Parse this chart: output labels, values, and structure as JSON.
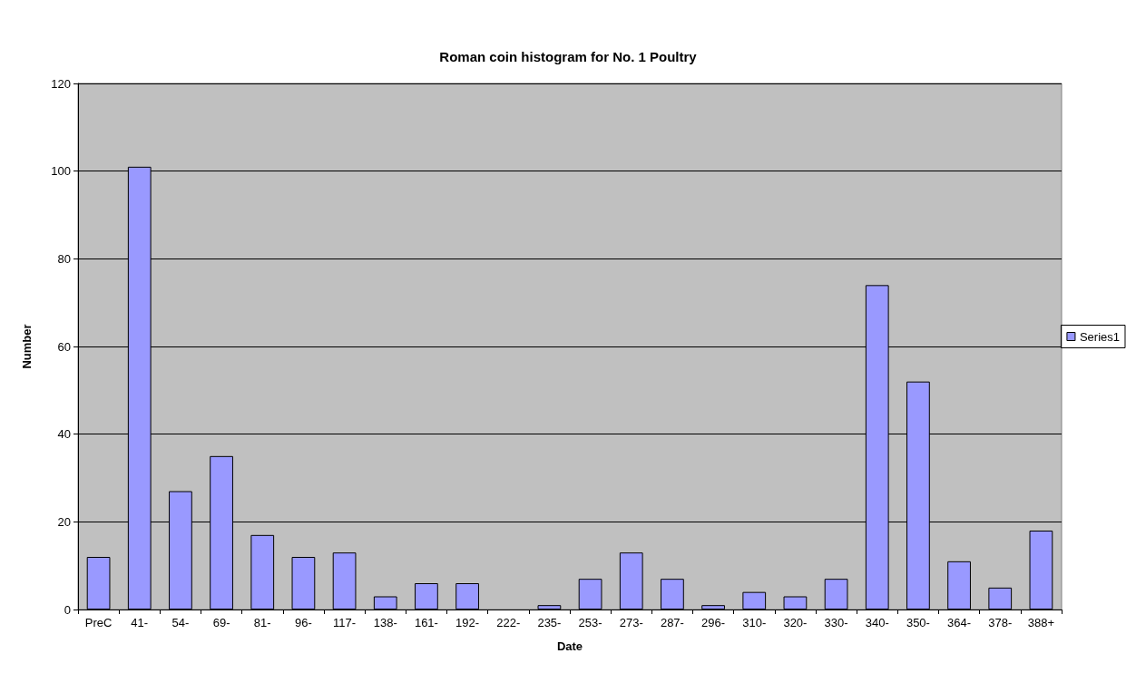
{
  "chart_data": {
    "type": "bar",
    "title": "Roman coin histogram for No. 1 Poultry",
    "xlabel": "Date",
    "ylabel": "Number",
    "categories": [
      "PreC",
      "41-",
      "54-",
      "69-",
      "81-",
      "96-",
      "117-",
      "138-",
      "161-",
      "192-",
      "222-",
      "235-",
      "253-",
      "273-",
      "287-",
      "296-",
      "310-",
      "320-",
      "330-",
      "340-",
      "350-",
      "364-",
      "378-",
      "388+"
    ],
    "series": [
      {
        "name": "Series1",
        "color": "#9999ff",
        "values": [
          12,
          101,
          27,
          35,
          17,
          12,
          13,
          3,
          6,
          6,
          0,
          1,
          7,
          13,
          7,
          1,
          4,
          3,
          7,
          74,
          52,
          11,
          5,
          18
        ]
      }
    ],
    "ylim": [
      0,
      120
    ],
    "yticks": [
      0,
      20,
      40,
      60,
      80,
      100,
      120
    ],
    "grid": "y",
    "legend": "right"
  }
}
